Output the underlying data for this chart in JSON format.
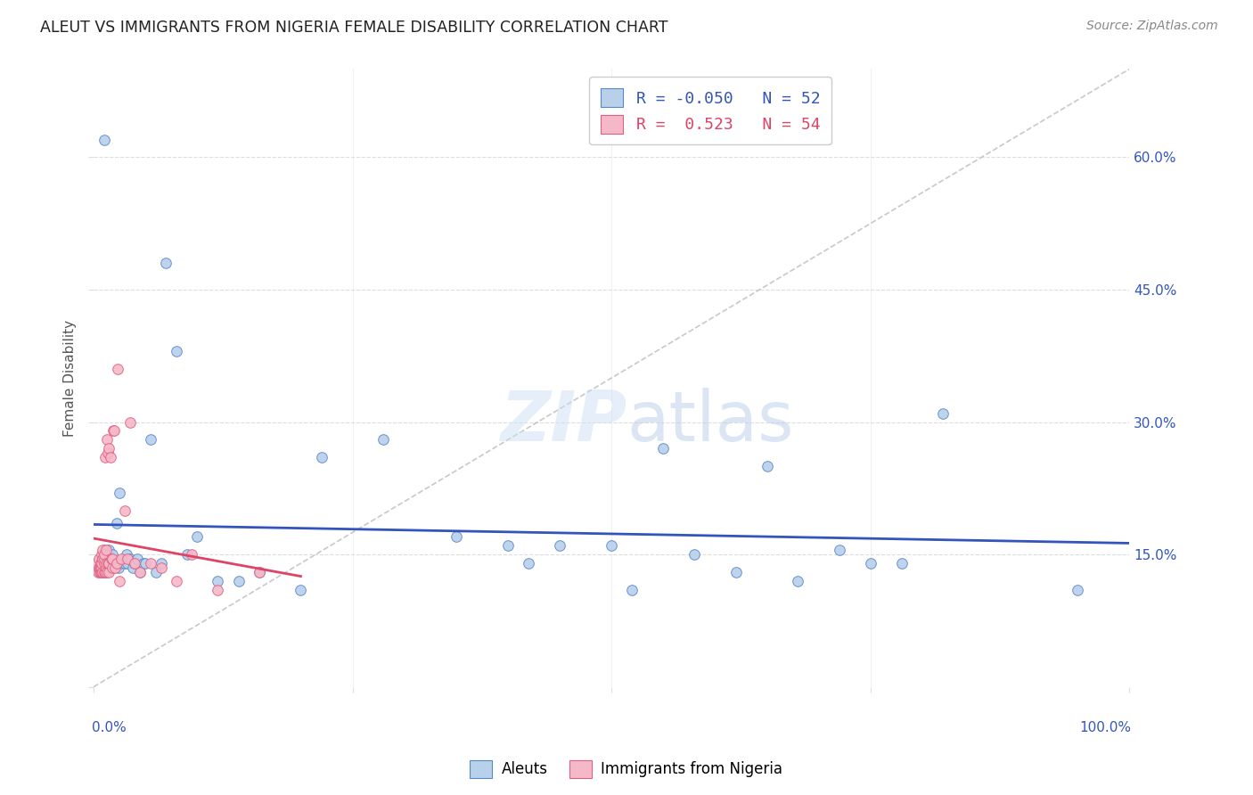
{
  "title": "ALEUT VS IMMIGRANTS FROM NIGERIA FEMALE DISABILITY CORRELATION CHART",
  "source": "Source: ZipAtlas.com",
  "ylabel": "Female Disability",
  "ylabel_right_ticks": [
    "60.0%",
    "45.0%",
    "30.0%",
    "15.0%"
  ],
  "ylabel_right_vals": [
    0.6,
    0.45,
    0.3,
    0.15
  ],
  "r_aleuts": -0.05,
  "r_nigeria": 0.523,
  "n_aleuts": 52,
  "n_nigeria": 54,
  "color_aleuts_fill": "#b8d0ea",
  "color_nigeria_fill": "#f5b8c8",
  "color_aleuts_edge": "#5588cc",
  "color_nigeria_edge": "#e06080",
  "color_aleuts_line": "#3355bb",
  "color_nigeria_line": "#dd4466",
  "color_diagonal": "#bbbbbb",
  "aleuts_x": [
    0.01,
    0.011,
    0.012,
    0.013,
    0.015,
    0.016,
    0.018,
    0.02,
    0.022,
    0.024,
    0.025,
    0.026,
    0.028,
    0.03,
    0.032,
    0.033,
    0.035,
    0.038,
    0.04,
    0.042,
    0.045,
    0.048,
    0.05,
    0.055,
    0.06,
    0.065,
    0.07,
    0.08,
    0.09,
    0.1,
    0.12,
    0.14,
    0.16,
    0.2,
    0.22,
    0.28,
    0.35,
    0.4,
    0.42,
    0.45,
    0.5,
    0.52,
    0.55,
    0.58,
    0.62,
    0.65,
    0.68,
    0.72,
    0.75,
    0.78,
    0.82,
    0.95
  ],
  "aleuts_y": [
    0.62,
    0.155,
    0.145,
    0.15,
    0.155,
    0.145,
    0.15,
    0.14,
    0.185,
    0.135,
    0.22,
    0.14,
    0.145,
    0.14,
    0.15,
    0.14,
    0.145,
    0.135,
    0.14,
    0.145,
    0.13,
    0.14,
    0.14,
    0.28,
    0.13,
    0.14,
    0.48,
    0.38,
    0.15,
    0.17,
    0.12,
    0.12,
    0.13,
    0.11,
    0.26,
    0.28,
    0.17,
    0.16,
    0.14,
    0.16,
    0.16,
    0.11,
    0.27,
    0.15,
    0.13,
    0.25,
    0.12,
    0.155,
    0.14,
    0.14,
    0.31,
    0.11
  ],
  "nigeria_x": [
    0.003,
    0.004,
    0.005,
    0.005,
    0.006,
    0.006,
    0.007,
    0.007,
    0.007,
    0.008,
    0.008,
    0.008,
    0.008,
    0.009,
    0.009,
    0.009,
    0.01,
    0.01,
    0.01,
    0.01,
    0.011,
    0.011,
    0.012,
    0.012,
    0.012,
    0.013,
    0.013,
    0.014,
    0.014,
    0.015,
    0.015,
    0.015,
    0.016,
    0.017,
    0.018,
    0.018,
    0.019,
    0.02,
    0.021,
    0.022,
    0.023,
    0.025,
    0.027,
    0.03,
    0.033,
    0.035,
    0.04,
    0.045,
    0.055,
    0.065,
    0.08,
    0.095,
    0.12,
    0.16
  ],
  "nigeria_y": [
    0.14,
    0.13,
    0.135,
    0.145,
    0.13,
    0.135,
    0.13,
    0.135,
    0.14,
    0.13,
    0.135,
    0.14,
    0.15,
    0.13,
    0.145,
    0.155,
    0.13,
    0.14,
    0.145,
    0.15,
    0.13,
    0.26,
    0.135,
    0.14,
    0.155,
    0.13,
    0.28,
    0.14,
    0.265,
    0.13,
    0.14,
    0.27,
    0.26,
    0.145,
    0.135,
    0.145,
    0.29,
    0.29,
    0.135,
    0.14,
    0.36,
    0.12,
    0.145,
    0.2,
    0.145,
    0.3,
    0.14,
    0.13,
    0.14,
    0.135,
    0.12,
    0.15,
    0.11,
    0.13
  ],
  "xlim": [
    0.0,
    1.0
  ],
  "ylim": [
    0.0,
    0.7
  ],
  "background_color": "#ffffff",
  "grid_color": "#dddddd"
}
